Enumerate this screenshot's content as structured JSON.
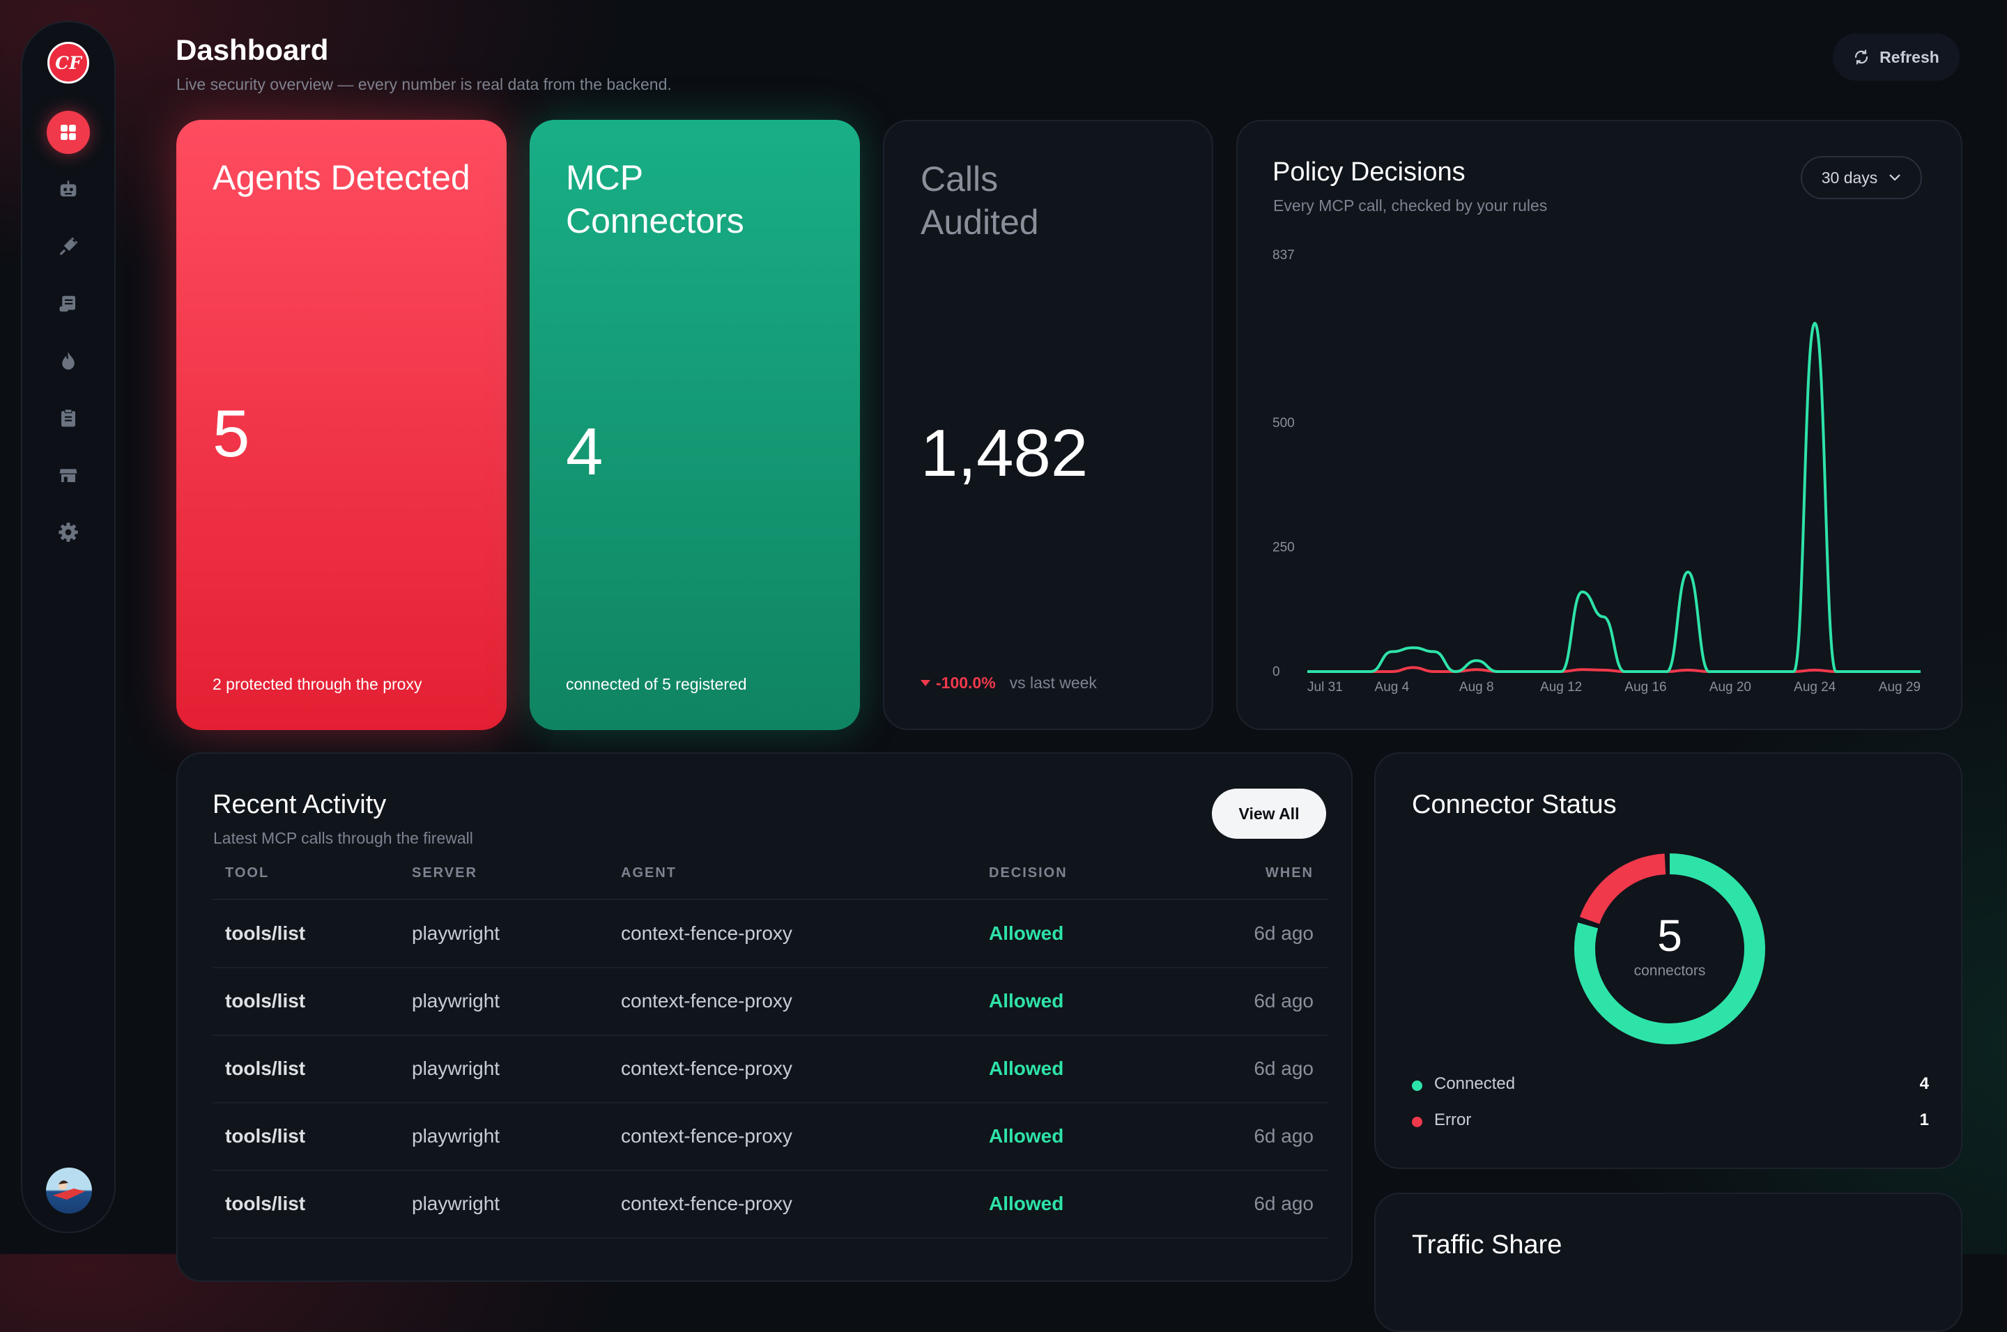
{
  "app": {
    "logo_text": "CF"
  },
  "header": {
    "title": "Dashboard",
    "subtitle": "Live security overview — every number is real data from the backend.",
    "refresh_label": "Refresh"
  },
  "sidebar": {
    "items": [
      {
        "id": "dashboard",
        "icon": "grid-icon",
        "active": true
      },
      {
        "id": "agents",
        "icon": "robot-icon",
        "active": false
      },
      {
        "id": "connectors",
        "icon": "plug-icon",
        "active": false
      },
      {
        "id": "logs",
        "icon": "scroll-icon",
        "active": false
      },
      {
        "id": "firewall",
        "icon": "flame-icon",
        "active": false
      },
      {
        "id": "policies",
        "icon": "clipboard-icon",
        "active": false
      },
      {
        "id": "marketplace",
        "icon": "store-icon",
        "active": false
      },
      {
        "id": "settings",
        "icon": "gear-icon",
        "active": false
      }
    ]
  },
  "stats": {
    "agents": {
      "label": "Agents Detected",
      "value": "5",
      "footnote": "2 protected through the proxy"
    },
    "connectors": {
      "label": "MCP Connectors",
      "value": "4",
      "footnote": "connected of 5 registered"
    },
    "calls": {
      "label": "Calls Audited",
      "value": "1,482",
      "change": "-100.0%",
      "change_suffix": "vs last week"
    }
  },
  "policy": {
    "title": "Policy Decisions",
    "subtitle": "Every MCP call, checked by your rules",
    "range_label": "30 days"
  },
  "chart_data": {
    "type": "line",
    "x": [
      "Jul 31",
      "Aug 1",
      "Aug 2",
      "Aug 3",
      "Aug 4",
      "Aug 5",
      "Aug 6",
      "Aug 7",
      "Aug 8",
      "Aug 9",
      "Aug 10",
      "Aug 11",
      "Aug 12",
      "Aug 13",
      "Aug 14",
      "Aug 15",
      "Aug 16",
      "Aug 17",
      "Aug 18",
      "Aug 19",
      "Aug 20",
      "Aug 21",
      "Aug 22",
      "Aug 23",
      "Aug 24",
      "Aug 25",
      "Aug 26",
      "Aug 27",
      "Aug 28",
      "Aug 29"
    ],
    "xticks": [
      "Jul 31",
      "Aug 4",
      "Aug 8",
      "Aug 12",
      "Aug 16",
      "Aug 20",
      "Aug 24",
      "Aug 29"
    ],
    "yticks": [
      "0",
      "250",
      "500",
      "837"
    ],
    "ylim": [
      0,
      837
    ],
    "series": [
      {
        "color": "#2ee3a8",
        "values": [
          0,
          0,
          0,
          0,
          40,
          48,
          40,
          0,
          22,
          0,
          0,
          0,
          0,
          160,
          110,
          0,
          0,
          0,
          200,
          0,
          0,
          0,
          0,
          0,
          700,
          0,
          0,
          0,
          0,
          0
        ]
      },
      {
        "color": "#f0394b",
        "values": [
          0,
          0,
          0,
          0,
          0,
          8,
          0,
          0,
          4,
          0,
          0,
          0,
          0,
          4,
          3,
          0,
          0,
          0,
          3,
          0,
          0,
          0,
          0,
          0,
          3,
          0,
          0,
          0,
          0,
          0
        ]
      }
    ]
  },
  "activity": {
    "title": "Recent Activity",
    "subtitle": "Latest MCP calls through the firewall",
    "view_all_label": "View All",
    "columns": [
      "TOOL",
      "SERVER",
      "AGENT",
      "DECISION",
      "WHEN"
    ],
    "rows": [
      {
        "tool": "tools/list",
        "server": "playwright",
        "agent": "context-fence-proxy",
        "decision": "Allowed",
        "when": "6d ago"
      },
      {
        "tool": "tools/list",
        "server": "playwright",
        "agent": "context-fence-proxy",
        "decision": "Allowed",
        "when": "6d ago"
      },
      {
        "tool": "tools/list",
        "server": "playwright",
        "agent": "context-fence-proxy",
        "decision": "Allowed",
        "when": "6d ago"
      },
      {
        "tool": "tools/list",
        "server": "playwright",
        "agent": "context-fence-proxy",
        "decision": "Allowed",
        "when": "6d ago"
      },
      {
        "tool": "tools/list",
        "server": "playwright",
        "agent": "context-fence-proxy",
        "decision": "Allowed",
        "when": "6d ago"
      }
    ]
  },
  "connector_status": {
    "title": "Connector Status",
    "total": "5",
    "total_label": "connectors",
    "colors": {
      "connected": "#2ee3a8",
      "error": "#f0394b"
    },
    "legend": [
      {
        "label": "Connected",
        "count": 4,
        "color": "#2ee3a8"
      },
      {
        "label": "Error",
        "count": 1,
        "color": "#f0394b"
      }
    ]
  },
  "traffic": {
    "title": "Traffic Share"
  }
}
